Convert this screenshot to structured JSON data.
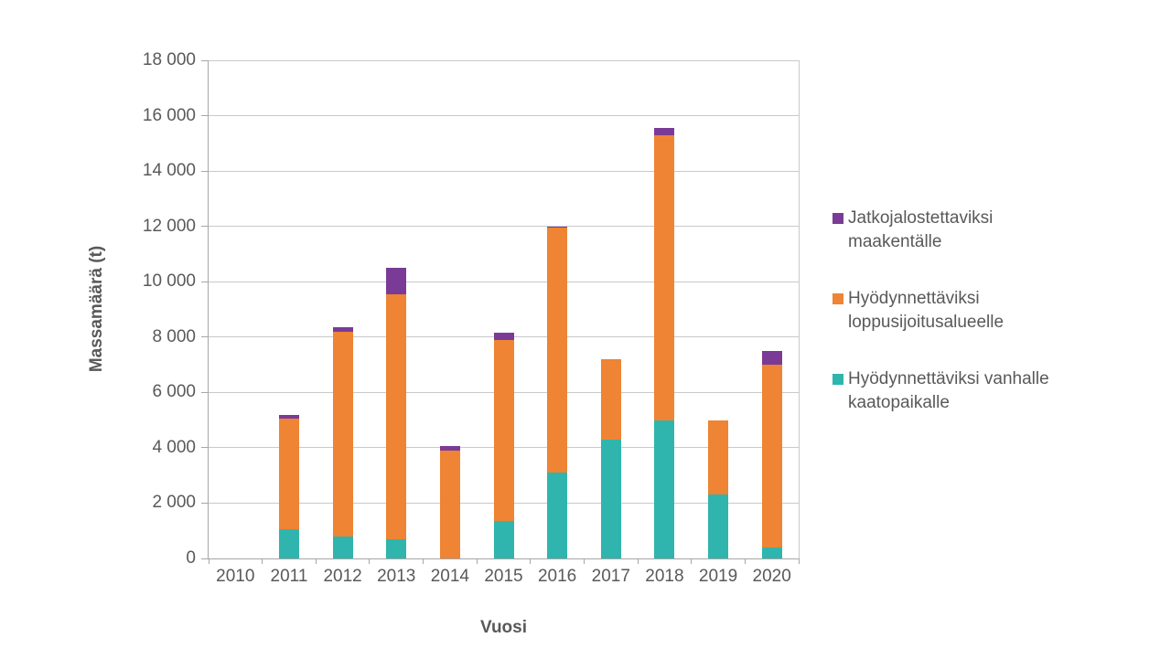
{
  "chart_data": {
    "type": "bar",
    "stacked": true,
    "title": "",
    "xlabel": "Vuosi",
    "ylabel": "Massamäärä (t)",
    "categories": [
      "2010",
      "2011",
      "2012",
      "2013",
      "2014",
      "2015",
      "2016",
      "2017",
      "2018",
      "2019",
      "2020"
    ],
    "series": [
      {
        "name": "Hyödynnettäviksi vanhalle kaatopaikalle",
        "color": "#2FB5AD",
        "values": [
          0,
          1050,
          800,
          700,
          0,
          1350,
          3100,
          4300,
          5000,
          2300,
          400
        ]
      },
      {
        "name": "Hyödynnettäviksi loppusijoitusalueelle",
        "color": "#EE8434",
        "values": [
          0,
          4000,
          7400,
          8850,
          3900,
          6550,
          8850,
          2900,
          10300,
          2700,
          6600
        ]
      },
      {
        "name": "Jatkojalostettaviksi maakentälle",
        "color": "#7A3B96",
        "values": [
          0,
          150,
          150,
          950,
          150,
          250,
          50,
          0,
          250,
          0,
          500
        ]
      }
    ],
    "ylim": [
      0,
      18000
    ],
    "yticks": [
      {
        "value": 0,
        "label": "0"
      },
      {
        "value": 2000,
        "label": "2 000"
      },
      {
        "value": 4000,
        "label": "4 000"
      },
      {
        "value": 6000,
        "label": "6 000"
      },
      {
        "value": 8000,
        "label": "8 000"
      },
      {
        "value": 10000,
        "label": "10 000"
      },
      {
        "value": 12000,
        "label": "12 000"
      },
      {
        "value": 14000,
        "label": "14 000"
      },
      {
        "value": 16000,
        "label": "16 000"
      },
      {
        "value": 18000,
        "label": "18 000"
      }
    ],
    "grid": true,
    "grid_color": "#C9C9C9",
    "axis_color": "#A6A6A6",
    "text_color": "#595959",
    "background": "#FFFFFF",
    "legend_position": "right",
    "legend_order_top_to_bottom": [
      "Jatkojalostettaviksi maakentälle",
      "Hyödynnettäviksi loppusijoitusalueelle",
      "Hyödynnettäviksi vanhalle kaatopaikalle"
    ]
  }
}
